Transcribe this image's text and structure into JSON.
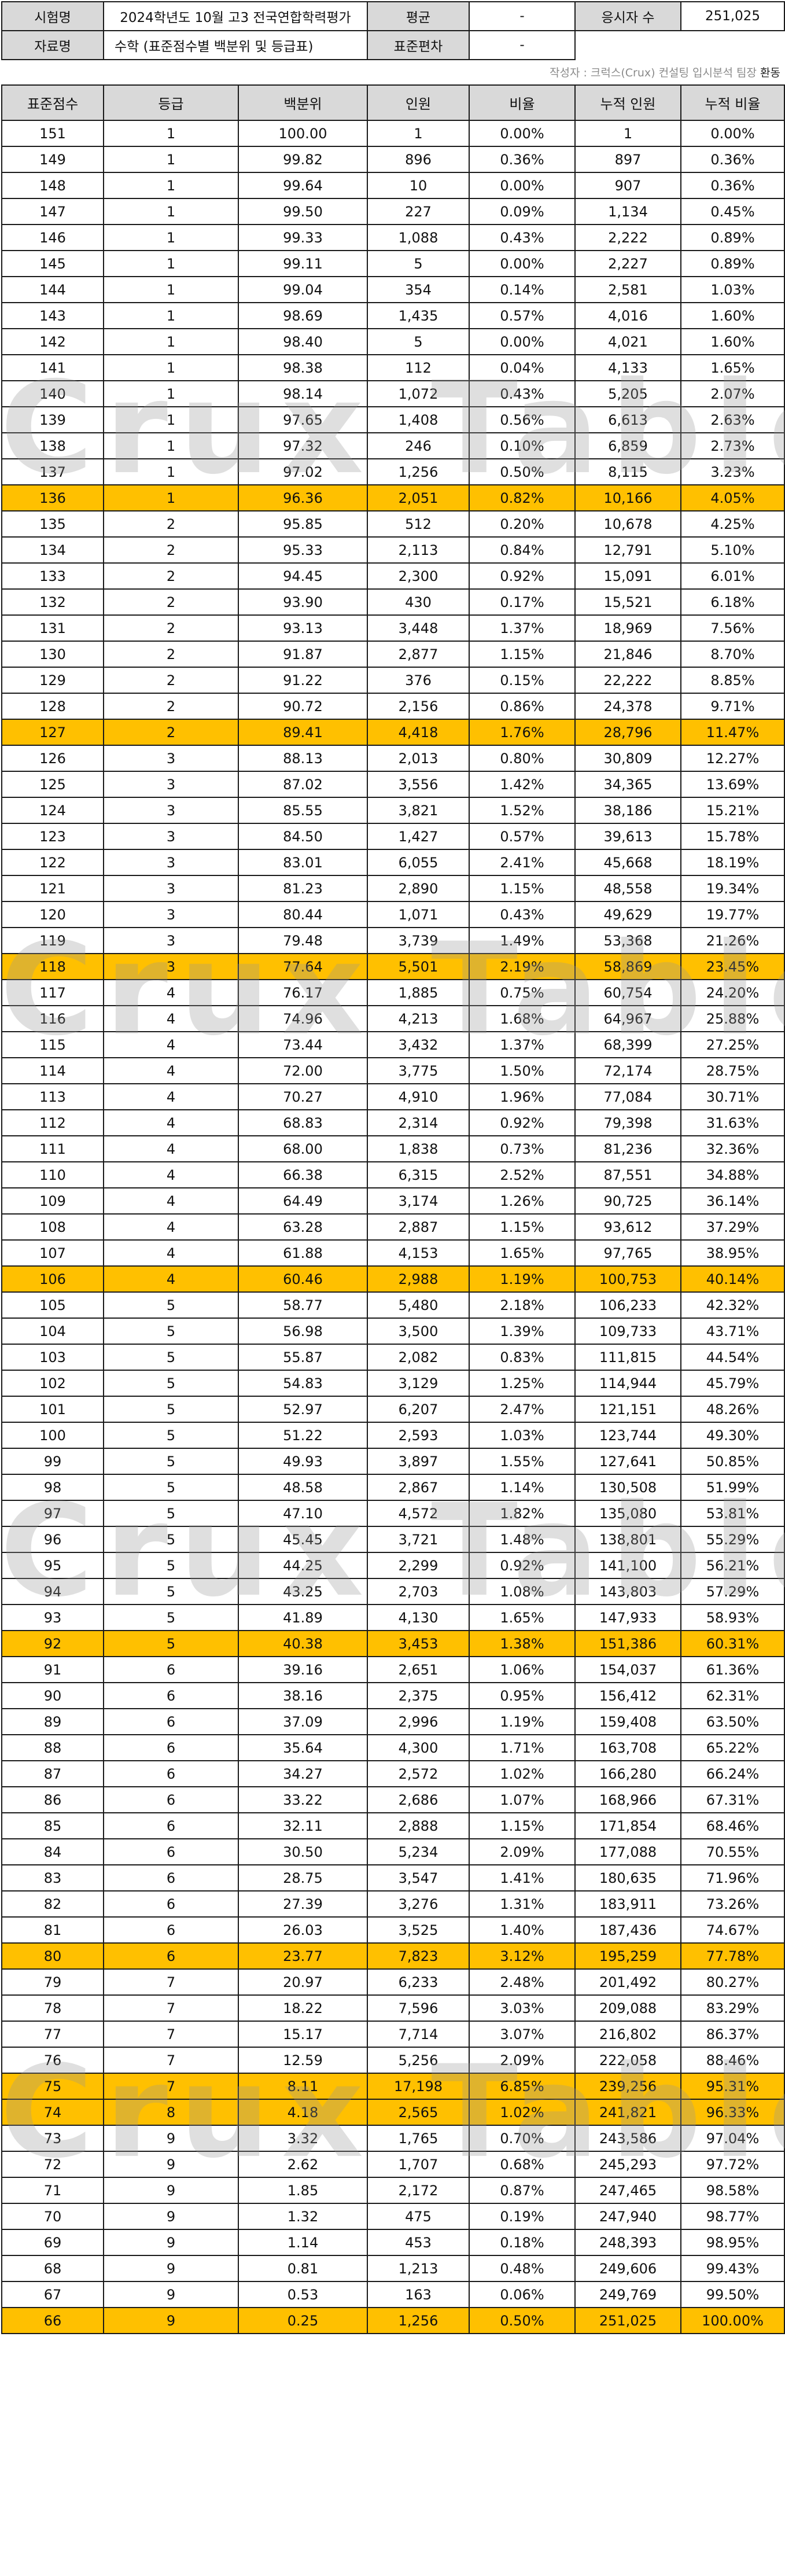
{
  "info": {
    "exam_label": "시험명",
    "exam_value": "2024학년도 10월 고3 전국연합학력평가",
    "mean_label": "평균",
    "mean_value": "-",
    "count_label": "응시자 수",
    "count_value": "251,025",
    "data_label": "자료명",
    "data_value": "수학 (표준점수별 백분위 및 등급표)",
    "sd_label": "표준편차",
    "sd_value": "-"
  },
  "credit": {
    "prefix": "작성자 : 크럭스(Crux) 컨설팅 입시분석 팀장",
    "name": "환동"
  },
  "watermark": "Crux Table",
  "columns": [
    "표준점수",
    "등급",
    "백분위",
    "인원",
    "비율",
    "누적 인원",
    "누적 비율"
  ],
  "rows": [
    [
      "151",
      "1",
      "100.00",
      "1",
      "0.00%",
      "1",
      "0.00%"
    ],
    [
      "149",
      "1",
      "99.82",
      "896",
      "0.36%",
      "897",
      "0.36%"
    ],
    [
      "148",
      "1",
      "99.64",
      "10",
      "0.00%",
      "907",
      "0.36%"
    ],
    [
      "147",
      "1",
      "99.50",
      "227",
      "0.09%",
      "1,134",
      "0.45%"
    ],
    [
      "146",
      "1",
      "99.33",
      "1,088",
      "0.43%",
      "2,222",
      "0.89%"
    ],
    [
      "145",
      "1",
      "99.11",
      "5",
      "0.00%",
      "2,227",
      "0.89%"
    ],
    [
      "144",
      "1",
      "99.04",
      "354",
      "0.14%",
      "2,581",
      "1.03%"
    ],
    [
      "143",
      "1",
      "98.69",
      "1,435",
      "0.57%",
      "4,016",
      "1.60%"
    ],
    [
      "142",
      "1",
      "98.40",
      "5",
      "0.00%",
      "4,021",
      "1.60%"
    ],
    [
      "141",
      "1",
      "98.38",
      "112",
      "0.04%",
      "4,133",
      "1.65%"
    ],
    [
      "140",
      "1",
      "98.14",
      "1,072",
      "0.43%",
      "5,205",
      "2.07%"
    ],
    [
      "139",
      "1",
      "97.65",
      "1,408",
      "0.56%",
      "6,613",
      "2.63%"
    ],
    [
      "138",
      "1",
      "97.32",
      "246",
      "0.10%",
      "6,859",
      "2.73%"
    ],
    [
      "137",
      "1",
      "97.02",
      "1,256",
      "0.50%",
      "8,115",
      "3.23%"
    ],
    [
      "136",
      "1",
      "96.36",
      "2,051",
      "0.82%",
      "10,166",
      "4.05%"
    ],
    [
      "135",
      "2",
      "95.85",
      "512",
      "0.20%",
      "10,678",
      "4.25%"
    ],
    [
      "134",
      "2",
      "95.33",
      "2,113",
      "0.84%",
      "12,791",
      "5.10%"
    ],
    [
      "133",
      "2",
      "94.45",
      "2,300",
      "0.92%",
      "15,091",
      "6.01%"
    ],
    [
      "132",
      "2",
      "93.90",
      "430",
      "0.17%",
      "15,521",
      "6.18%"
    ],
    [
      "131",
      "2",
      "93.13",
      "3,448",
      "1.37%",
      "18,969",
      "7.56%"
    ],
    [
      "130",
      "2",
      "91.87",
      "2,877",
      "1.15%",
      "21,846",
      "8.70%"
    ],
    [
      "129",
      "2",
      "91.22",
      "376",
      "0.15%",
      "22,222",
      "8.85%"
    ],
    [
      "128",
      "2",
      "90.72",
      "2,156",
      "0.86%",
      "24,378",
      "9.71%"
    ],
    [
      "127",
      "2",
      "89.41",
      "4,418",
      "1.76%",
      "28,796",
      "11.47%"
    ],
    [
      "126",
      "3",
      "88.13",
      "2,013",
      "0.80%",
      "30,809",
      "12.27%"
    ],
    [
      "125",
      "3",
      "87.02",
      "3,556",
      "1.42%",
      "34,365",
      "13.69%"
    ],
    [
      "124",
      "3",
      "85.55",
      "3,821",
      "1.52%",
      "38,186",
      "15.21%"
    ],
    [
      "123",
      "3",
      "84.50",
      "1,427",
      "0.57%",
      "39,613",
      "15.78%"
    ],
    [
      "122",
      "3",
      "83.01",
      "6,055",
      "2.41%",
      "45,668",
      "18.19%"
    ],
    [
      "121",
      "3",
      "81.23",
      "2,890",
      "1.15%",
      "48,558",
      "19.34%"
    ],
    [
      "120",
      "3",
      "80.44",
      "1,071",
      "0.43%",
      "49,629",
      "19.77%"
    ],
    [
      "119",
      "3",
      "79.48",
      "3,739",
      "1.49%",
      "53,368",
      "21.26%"
    ],
    [
      "118",
      "3",
      "77.64",
      "5,501",
      "2.19%",
      "58,869",
      "23.45%"
    ],
    [
      "117",
      "4",
      "76.17",
      "1,885",
      "0.75%",
      "60,754",
      "24.20%"
    ],
    [
      "116",
      "4",
      "74.96",
      "4,213",
      "1.68%",
      "64,967",
      "25.88%"
    ],
    [
      "115",
      "4",
      "73.44",
      "3,432",
      "1.37%",
      "68,399",
      "27.25%"
    ],
    [
      "114",
      "4",
      "72.00",
      "3,775",
      "1.50%",
      "72,174",
      "28.75%"
    ],
    [
      "113",
      "4",
      "70.27",
      "4,910",
      "1.96%",
      "77,084",
      "30.71%"
    ],
    [
      "112",
      "4",
      "68.83",
      "2,314",
      "0.92%",
      "79,398",
      "31.63%"
    ],
    [
      "111",
      "4",
      "68.00",
      "1,838",
      "0.73%",
      "81,236",
      "32.36%"
    ],
    [
      "110",
      "4",
      "66.38",
      "6,315",
      "2.52%",
      "87,551",
      "34.88%"
    ],
    [
      "109",
      "4",
      "64.49",
      "3,174",
      "1.26%",
      "90,725",
      "36.14%"
    ],
    [
      "108",
      "4",
      "63.28",
      "2,887",
      "1.15%",
      "93,612",
      "37.29%"
    ],
    [
      "107",
      "4",
      "61.88",
      "4,153",
      "1.65%",
      "97,765",
      "38.95%"
    ],
    [
      "106",
      "4",
      "60.46",
      "2,988",
      "1.19%",
      "100,753",
      "40.14%"
    ],
    [
      "105",
      "5",
      "58.77",
      "5,480",
      "2.18%",
      "106,233",
      "42.32%"
    ],
    [
      "104",
      "5",
      "56.98",
      "3,500",
      "1.39%",
      "109,733",
      "43.71%"
    ],
    [
      "103",
      "5",
      "55.87",
      "2,082",
      "0.83%",
      "111,815",
      "44.54%"
    ],
    [
      "102",
      "5",
      "54.83",
      "3,129",
      "1.25%",
      "114,944",
      "45.79%"
    ],
    [
      "101",
      "5",
      "52.97",
      "6,207",
      "2.47%",
      "121,151",
      "48.26%"
    ],
    [
      "100",
      "5",
      "51.22",
      "2,593",
      "1.03%",
      "123,744",
      "49.30%"
    ],
    [
      "99",
      "5",
      "49.93",
      "3,897",
      "1.55%",
      "127,641",
      "50.85%"
    ],
    [
      "98",
      "5",
      "48.58",
      "2,867",
      "1.14%",
      "130,508",
      "51.99%"
    ],
    [
      "97",
      "5",
      "47.10",
      "4,572",
      "1.82%",
      "135,080",
      "53.81%"
    ],
    [
      "96",
      "5",
      "45.45",
      "3,721",
      "1.48%",
      "138,801",
      "55.29%"
    ],
    [
      "95",
      "5",
      "44.25",
      "2,299",
      "0.92%",
      "141,100",
      "56.21%"
    ],
    [
      "94",
      "5",
      "43.25",
      "2,703",
      "1.08%",
      "143,803",
      "57.29%"
    ],
    [
      "93",
      "5",
      "41.89",
      "4,130",
      "1.65%",
      "147,933",
      "58.93%"
    ],
    [
      "92",
      "5",
      "40.38",
      "3,453",
      "1.38%",
      "151,386",
      "60.31%"
    ],
    [
      "91",
      "6",
      "39.16",
      "2,651",
      "1.06%",
      "154,037",
      "61.36%"
    ],
    [
      "90",
      "6",
      "38.16",
      "2,375",
      "0.95%",
      "156,412",
      "62.31%"
    ],
    [
      "89",
      "6",
      "37.09",
      "2,996",
      "1.19%",
      "159,408",
      "63.50%"
    ],
    [
      "88",
      "6",
      "35.64",
      "4,300",
      "1.71%",
      "163,708",
      "65.22%"
    ],
    [
      "87",
      "6",
      "34.27",
      "2,572",
      "1.02%",
      "166,280",
      "66.24%"
    ],
    [
      "86",
      "6",
      "33.22",
      "2,686",
      "1.07%",
      "168,966",
      "67.31%"
    ],
    [
      "85",
      "6",
      "32.11",
      "2,888",
      "1.15%",
      "171,854",
      "68.46%"
    ],
    [
      "84",
      "6",
      "30.50",
      "5,234",
      "2.09%",
      "177,088",
      "70.55%"
    ],
    [
      "83",
      "6",
      "28.75",
      "3,547",
      "1.41%",
      "180,635",
      "71.96%"
    ],
    [
      "82",
      "6",
      "27.39",
      "3,276",
      "1.31%",
      "183,911",
      "73.26%"
    ],
    [
      "81",
      "6",
      "26.03",
      "3,525",
      "1.40%",
      "187,436",
      "74.67%"
    ],
    [
      "80",
      "6",
      "23.77",
      "7,823",
      "3.12%",
      "195,259",
      "77.78%"
    ],
    [
      "79",
      "7",
      "20.97",
      "6,233",
      "2.48%",
      "201,492",
      "80.27%"
    ],
    [
      "78",
      "7",
      "18.22",
      "7,596",
      "3.03%",
      "209,088",
      "83.29%"
    ],
    [
      "77",
      "7",
      "15.17",
      "7,714",
      "3.07%",
      "216,802",
      "86.37%"
    ],
    [
      "76",
      "7",
      "12.59",
      "5,256",
      "2.09%",
      "222,058",
      "88.46%"
    ],
    [
      "75",
      "7",
      "8.11",
      "17,198",
      "6.85%",
      "239,256",
      "95.31%"
    ],
    [
      "74",
      "8",
      "4.18",
      "2,565",
      "1.02%",
      "241,821",
      "96.33%"
    ],
    [
      "73",
      "9",
      "3.32",
      "1,765",
      "0.70%",
      "243,586",
      "97.04%"
    ],
    [
      "72",
      "9",
      "2.62",
      "1,707",
      "0.68%",
      "245,293",
      "97.72%"
    ],
    [
      "71",
      "9",
      "1.85",
      "2,172",
      "0.87%",
      "247,465",
      "98.58%"
    ],
    [
      "70",
      "9",
      "1.32",
      "475",
      "0.19%",
      "247,940",
      "98.77%"
    ],
    [
      "69",
      "9",
      "1.14",
      "453",
      "0.18%",
      "248,393",
      "98.95%"
    ],
    [
      "68",
      "9",
      "0.81",
      "1,213",
      "0.48%",
      "249,606",
      "99.43%"
    ],
    [
      "67",
      "9",
      "0.53",
      "163",
      "0.06%",
      "249,769",
      "99.50%"
    ],
    [
      "66",
      "9",
      "0.25",
      "1,256",
      "0.50%",
      "251,025",
      "100.00%"
    ]
  ],
  "highlight_rows": [
    "136",
    "127",
    "118",
    "106",
    "92",
    "80",
    "75",
    "74",
    "66"
  ],
  "highlight_color": "#ffc000",
  "header_fill_color": "#d9d9d9"
}
